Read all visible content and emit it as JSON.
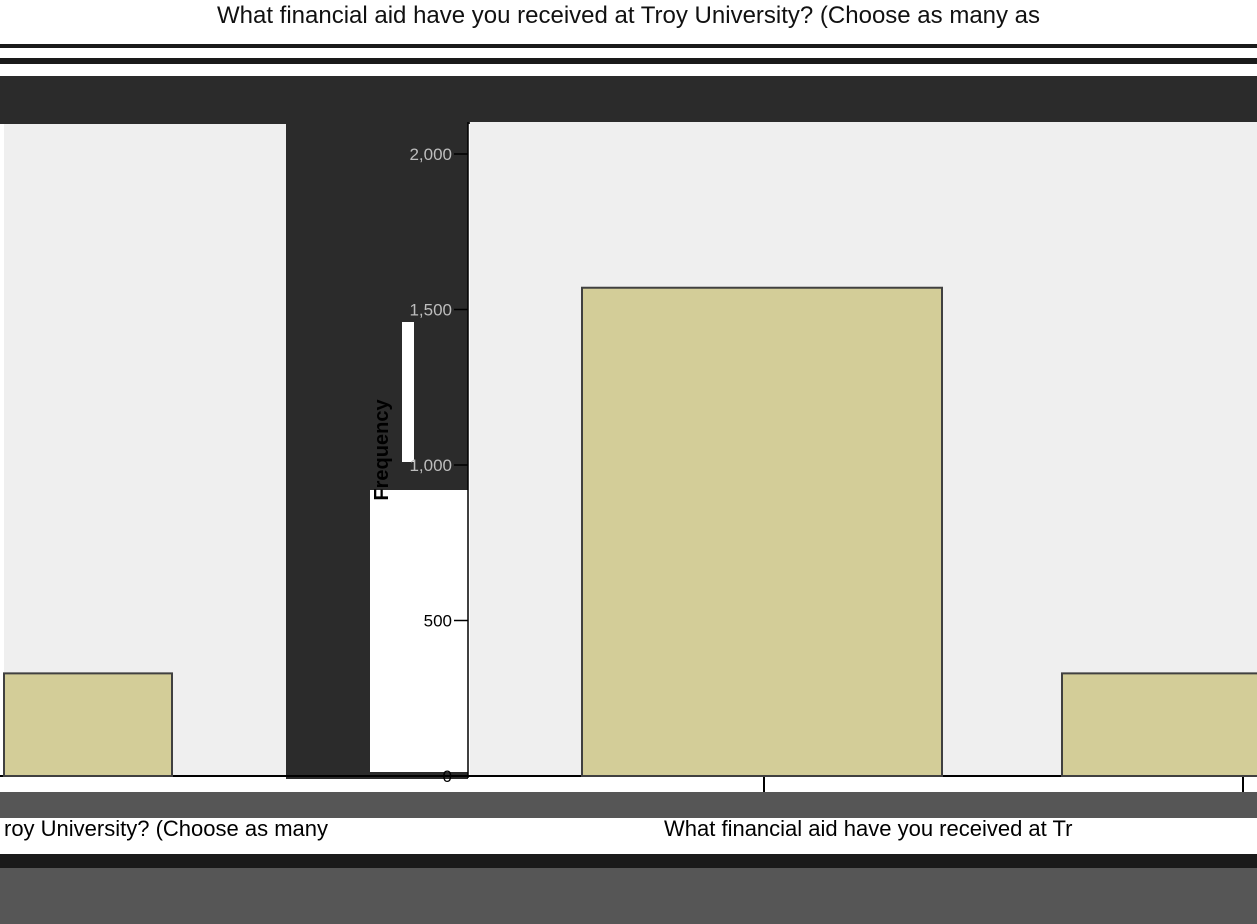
{
  "chart_data": {
    "type": "bar",
    "title": "What financial aid have you received at Troy University? (Choose as many as",
    "ylabel": "Frequency",
    "xlabel_left": "roy University? (Choose as many",
    "xlabel_right": "What financial aid have you received at Tr",
    "y_ticks": [
      "0",
      "500",
      "1,000",
      "1,500",
      "2,000"
    ],
    "ylim": [
      0,
      2000
    ],
    "grid": false,
    "panels": [
      {
        "name": "left-panel",
        "values": [
          330
        ]
      },
      {
        "name": "right-panel",
        "values": [
          1570,
          330
        ]
      }
    ]
  },
  "colors": {
    "plot_bg": "#efefef",
    "bar_fill": "#d3cd98",
    "bar_stroke": "#404040",
    "dark_band": "#2b2b2b",
    "bottom_band": "#565656"
  }
}
